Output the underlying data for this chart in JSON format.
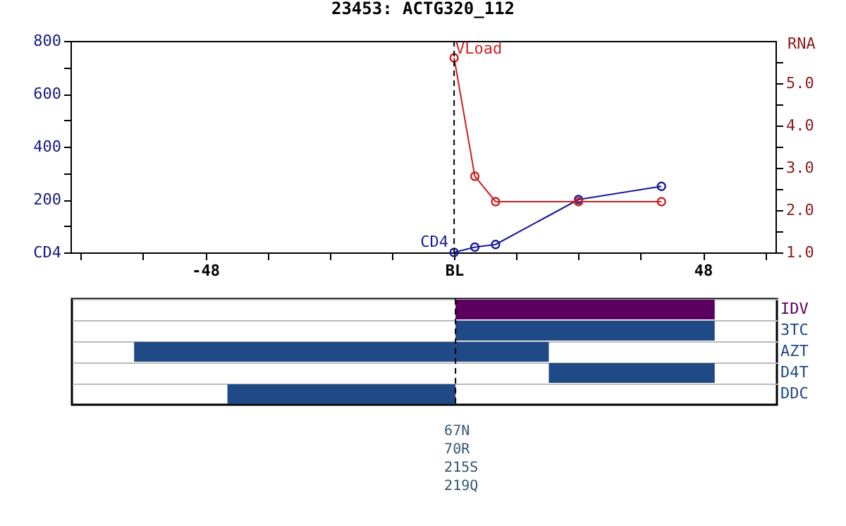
{
  "chart_data": [
    {
      "type": "line",
      "title": "23453: ACTG320_112",
      "y2label": "RNA",
      "x": [
        0,
        4,
        8,
        24,
        40
      ],
      "series": [
        {
          "name": "CD4",
          "color": "#1a1a99",
          "values": [
            0,
            20,
            30,
            200,
            250
          ]
        },
        {
          "name": "VLoad",
          "color": "#cc2222",
          "axis": "y2",
          "values": [
            5.6,
            2.8,
            2.2,
            2.2,
            2.2
          ]
        }
      ],
      "xlim": [
        -74,
        62
      ],
      "xticks": [
        {
          "value": -72,
          "label": null
        },
        {
          "value": -60,
          "label": null
        },
        -48,
        {
          "value": -36,
          "label": null
        },
        {
          "value": -24,
          "label": null
        },
        {
          "value": -12,
          "label": null
        },
        {
          "value": 0,
          "label": "BL"
        },
        {
          "value": 12,
          "label": null
        },
        {
          "value": 24,
          "label": null
        },
        {
          "value": 36,
          "label": null
        },
        48,
        {
          "value": 60,
          "label": null
        }
      ],
      "ylim": [
        0,
        800
      ],
      "yticks": [
        {
          "value": 0,
          "label": "CD4"
        },
        {
          "value": 100,
          "label": null
        },
        200,
        {
          "value": 300,
          "label": null
        },
        400,
        {
          "value": 500,
          "label": null
        },
        600,
        {
          "value": 700,
          "label": null
        },
        800
      ],
      "y2lim": [
        1,
        6
      ],
      "y2ticks": [
        {
          "value": 1,
          "label": "1.0"
        },
        {
          "value": 1.5,
          "label": null
        },
        {
          "value": 2,
          "label": "2.0"
        },
        {
          "value": 2.5,
          "label": null
        },
        {
          "value": 3,
          "label": "3.0"
        },
        {
          "value": 3.5,
          "label": null
        },
        {
          "value": 4,
          "label": "4.0"
        },
        {
          "value": 4.5,
          "label": null
        },
        {
          "value": 5,
          "label": "5.0"
        },
        {
          "value": 5.5,
          "label": null
        }
      ],
      "ref_lines": [
        {
          "axis": "x",
          "value": 0,
          "line_style": "dashed"
        }
      ],
      "marker": "circle",
      "grid": false
    },
    {
      "type": "bar",
      "orientation": "horizontal",
      "categories": [
        "IDV",
        "3TC",
        "AZT",
        "D4T",
        "DDC"
      ],
      "base": [
        0,
        0,
        -62,
        18,
        -44
      ],
      "values": [
        50,
        50,
        80,
        32,
        44
      ],
      "colors": [
        "#5c0060",
        "#1f4a85",
        "#1f4a85",
        "#1f4a85",
        "#1f4a85"
      ],
      "xlim": [
        -74,
        62
      ],
      "tick_labels": "y",
      "grid": "y",
      "ref_lines": [
        {
          "axis": "x",
          "value": 0,
          "line_style": "dashed"
        }
      ],
      "annotations": [
        "67N",
        "70R",
        "215S",
        "219Q"
      ]
    }
  ]
}
